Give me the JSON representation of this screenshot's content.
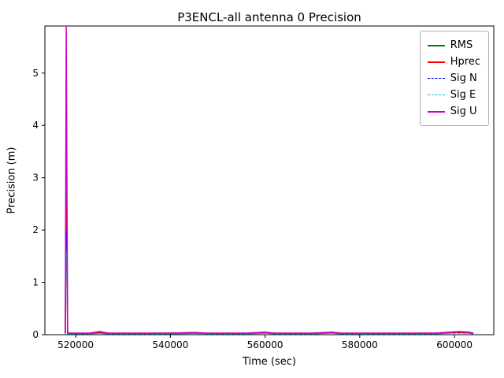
{
  "figure": {
    "background": "#ffffff"
  },
  "chart_data": {
    "type": "line",
    "title": "P3ENCL-all antenna 0 Precision",
    "xlabel": "Time (sec)",
    "ylabel": "Precision (m)",
    "xlim": [
      513500,
      608300
    ],
    "ylim": [
      0,
      5.9
    ],
    "xticks": [
      520000,
      540000,
      560000,
      580000,
      600000
    ],
    "yticks": [
      0,
      1,
      2,
      3,
      4,
      5
    ],
    "grid": false,
    "legend_position": "upper right",
    "series": [
      {
        "name": "RMS",
        "color": "#008000",
        "style": "solid",
        "width": 1.5,
        "x": [
          517800,
          518000,
          518300,
          520000,
          523000,
          525000,
          527000,
          530000,
          535000,
          540000,
          545000,
          548000,
          552000,
          556000,
          560000,
          562000,
          566000,
          570000,
          574000,
          576000,
          580000,
          584000,
          588000,
          592000,
          596000,
          599000,
          601000,
          603000,
          604000
        ],
        "y": [
          0.03,
          3.5,
          0.03,
          0.025,
          0.025,
          0.05,
          0.025,
          0.025,
          0.025,
          0.03,
          0.04,
          0.025,
          0.025,
          0.025,
          0.045,
          0.025,
          0.025,
          0.025,
          0.045,
          0.025,
          0.025,
          0.025,
          0.025,
          0.025,
          0.03,
          0.045,
          0.05,
          0.045,
          0.03
        ]
      },
      {
        "name": "Hprec",
        "color": "#ff0000",
        "style": "solid",
        "width": 1.5,
        "x": [
          517800,
          518000,
          518300,
          520000,
          523000,
          525000,
          527000,
          530000,
          535000,
          540000,
          545000,
          548000,
          552000,
          556000,
          560000,
          562000,
          566000,
          570000,
          574000,
          576000,
          580000,
          584000,
          588000,
          592000,
          596000,
          599000,
          601000,
          603000,
          604000
        ],
        "y": [
          0.02,
          2.5,
          0.02,
          0.02,
          0.02,
          0.035,
          0.02,
          0.02,
          0.02,
          0.02,
          0.03,
          0.02,
          0.02,
          0.02,
          0.035,
          0.02,
          0.02,
          0.02,
          0.035,
          0.02,
          0.02,
          0.02,
          0.02,
          0.02,
          0.02,
          0.035,
          0.04,
          0.035,
          0.02
        ]
      },
      {
        "name": "Sig N",
        "color": "#0000ff",
        "style": "dashed",
        "width": 0.9,
        "x": [
          517800,
          518000,
          518300,
          520000,
          523000,
          525000,
          527000,
          530000,
          535000,
          540000,
          545000,
          548000,
          552000,
          556000,
          560000,
          562000,
          566000,
          570000,
          574000,
          576000,
          580000,
          584000,
          588000,
          592000,
          596000,
          599000,
          601000,
          603000,
          604000
        ],
        "y": [
          0.015,
          2.0,
          0.015,
          0.015,
          0.015,
          0.03,
          0.015,
          0.015,
          0.015,
          0.015,
          0.025,
          0.015,
          0.015,
          0.015,
          0.03,
          0.015,
          0.015,
          0.015,
          0.03,
          0.015,
          0.015,
          0.015,
          0.015,
          0.015,
          0.015,
          0.03,
          0.03,
          0.03,
          0.015
        ]
      },
      {
        "name": "Sig E",
        "color": "#00bcd4",
        "style": "dashed",
        "width": 0.9,
        "x": [
          517800,
          518000,
          518300,
          520000,
          523000,
          525000,
          527000,
          530000,
          535000,
          540000,
          545000,
          548000,
          552000,
          556000,
          560000,
          562000,
          566000,
          570000,
          574000,
          576000,
          580000,
          584000,
          588000,
          592000,
          596000,
          599000,
          601000,
          603000,
          604000
        ],
        "y": [
          0.012,
          1.6,
          0.012,
          0.012,
          0.012,
          0.025,
          0.012,
          0.012,
          0.012,
          0.012,
          0.02,
          0.012,
          0.012,
          0.012,
          0.025,
          0.012,
          0.012,
          0.012,
          0.025,
          0.012,
          0.012,
          0.012,
          0.012,
          0.012,
          0.012,
          0.025,
          0.025,
          0.025,
          0.012
        ]
      },
      {
        "name": "Sig U",
        "color": "#cc00cc",
        "style": "solid",
        "width": 1.5,
        "x": [
          517800,
          518000,
          518300,
          520000,
          523000,
          525000,
          527000,
          530000,
          535000,
          540000,
          545000,
          548000,
          552000,
          556000,
          560000,
          562000,
          566000,
          570000,
          574000,
          576000,
          580000,
          584000,
          588000,
          592000,
          596000,
          599000,
          601000,
          603000,
          604000
        ],
        "y": [
          0.03,
          5.9,
          0.03,
          0.03,
          0.03,
          0.06,
          0.03,
          0.03,
          0.03,
          0.03,
          0.04,
          0.03,
          0.03,
          0.03,
          0.05,
          0.03,
          0.03,
          0.03,
          0.05,
          0.03,
          0.03,
          0.03,
          0.03,
          0.03,
          0.03,
          0.05,
          0.06,
          0.05,
          0.03
        ]
      }
    ]
  }
}
